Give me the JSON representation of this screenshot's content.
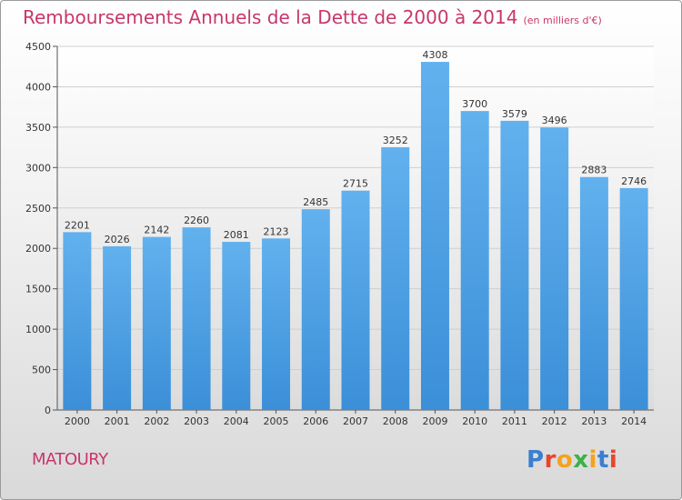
{
  "chart_data": {
    "type": "bar",
    "title": "Remboursements Annuels de la Dette de 2000 à 2014",
    "subtitle": "(en milliers d'€)",
    "categories": [
      "2000",
      "2001",
      "2002",
      "2003",
      "2004",
      "2005",
      "2006",
      "2007",
      "2008",
      "2009",
      "2010",
      "2011",
      "2012",
      "2013",
      "2014"
    ],
    "values": [
      2201,
      2026,
      2142,
      2260,
      2081,
      2123,
      2485,
      2715,
      3252,
      4308,
      3700,
      3579,
      3496,
      2883,
      2746
    ],
    "ylim": [
      0,
      4500
    ],
    "yticks": [
      0,
      500,
      1000,
      1500,
      2000,
      2500,
      3000,
      3500,
      4000,
      4500
    ],
    "grid": true,
    "bar_color": "#3b8fd8",
    "title_color": "#c8366c"
  },
  "commune": "MATOURY",
  "logo": {
    "text": "Proxiti",
    "colors": [
      "#3a7fd0",
      "#e8462a",
      "#f4a21c",
      "#3bb14a",
      "#f4a21c",
      "#3a7fd0",
      "#e8462a"
    ]
  }
}
